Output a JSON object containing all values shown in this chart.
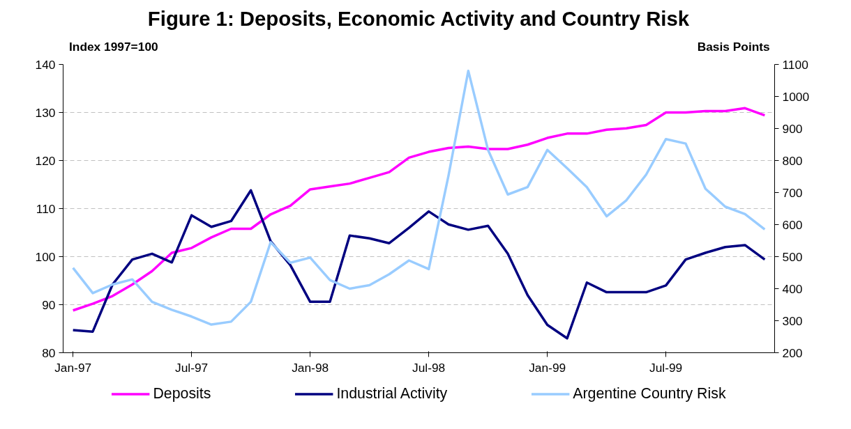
{
  "chart_data": {
    "type": "line",
    "title": "Figure 1: Deposits, Economic Activity and Country Risk",
    "ylabel": "Index 1997=100",
    "y2label": "Basis Points",
    "categories": [
      "Jan-97",
      null,
      null,
      null,
      null,
      null,
      "Jul-97",
      null,
      null,
      null,
      null,
      null,
      "Jan-98",
      null,
      null,
      null,
      null,
      null,
      "Jul-98",
      null,
      null,
      null,
      null,
      null,
      "Jan-99",
      null,
      null,
      null,
      null,
      null,
      "Jul-99",
      null,
      null,
      null,
      null,
      null
    ],
    "ylim": [
      80,
      140
    ],
    "yticks": [
      80,
      90,
      100,
      110,
      120,
      130,
      140
    ],
    "y2lim": [
      200,
      1100
    ],
    "y2ticks": [
      200,
      300,
      400,
      500,
      600,
      700,
      800,
      900,
      1000,
      1100
    ],
    "grid": "y",
    "legend": "bottom",
    "marker": "none",
    "line_style": "solid",
    "series": [
      {
        "name": "Deposits",
        "color": "#ff00ff",
        "values": [
          88.8,
          90.2,
          91.8,
          94.2,
          97,
          100.8,
          101.8,
          104,
          105.8,
          105.8,
          108.8,
          110.6,
          114,
          114.6,
          115.2,
          116.4,
          117.6,
          120.6,
          121.8,
          122.6,
          122.9,
          122.4,
          122.4,
          123.3,
          124.7,
          125.6,
          125.6,
          126.4,
          126.7,
          127.4,
          130,
          130,
          130.3,
          130.3,
          130.9,
          129.4
        ]
      },
      {
        "name": "Industrial Activity",
        "color": "#000080",
        "values": [
          84.7,
          84.4,
          94.2,
          99.4,
          100.6,
          98.8,
          108.6,
          106.2,
          107.4,
          113.8,
          103.2,
          98.2,
          90.6,
          90.6,
          104.4,
          103.8,
          102.8,
          106,
          109.4,
          106.7,
          105.6,
          106.4,
          100.6,
          92,
          85.8,
          83,
          94.6,
          92.6,
          92.6,
          92.6,
          94,
          99.4,
          100.8,
          102,
          102.4,
          99.4
        ]
      },
      {
        "name": "Argentine Country Risk",
        "color": "#99ccff",
        "axis": "y2",
        "values": [
          465,
          386,
          413,
          429,
          359,
          334,
          313,
          288,
          297,
          359,
          545,
          481,
          497,
          427,
          400,
          411,
          445,
          488,
          461,
          753,
          1080,
          833,
          694,
          717,
          833,
          776,
          717,
          626,
          676,
          756,
          867,
          853,
          712,
          656,
          633,
          585
        ]
      }
    ]
  }
}
